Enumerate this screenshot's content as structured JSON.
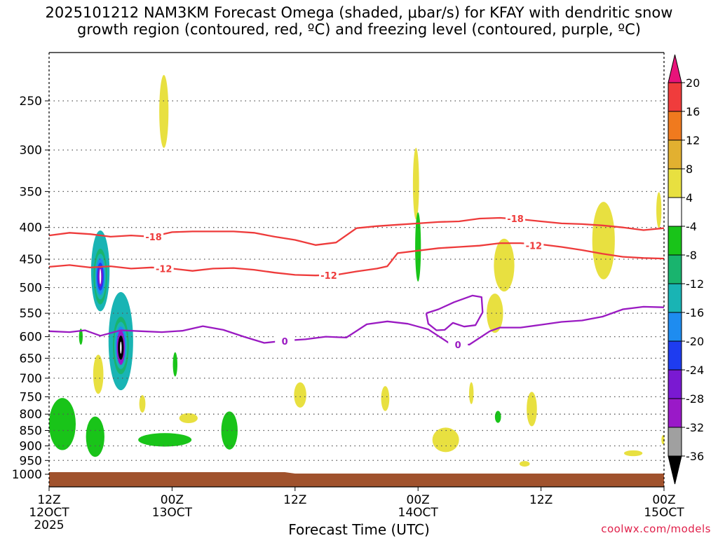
{
  "title": {
    "line1": "2025101212 NAM3KM Forecast Omega (shaded, μbar/s) for KFAY with dendritic snow",
    "line2": "growth region (contoured, red, ºC) and freezing level (contoured, purple, ºC)"
  },
  "xlabel": "Forecast Time (UTC)",
  "credit": "coolwx.com/models",
  "colors": {
    "red_contour": "#ee3b3b",
    "purple_contour": "#9a1ac2",
    "ground": "#a0522d",
    "grid": "#555555"
  },
  "chart_data": {
    "type": "heatmap",
    "title": "2025101212 NAM3KM Forecast Omega (shaded, μbar/s) for KFAY with dendritic snow growth region (contoured, red, ºC) and freezing level (contoured, purple, ºC)",
    "xlabel": "Forecast Time (UTC)",
    "ylabel": "",
    "x_range_hours": [
      0,
      60
    ],
    "y_log_pressure": true,
    "y_ticks": [
      250,
      300,
      350,
      400,
      450,
      500,
      550,
      600,
      650,
      700,
      750,
      800,
      850,
      900,
      950,
      1000
    ],
    "x_ticks": [
      {
        "hour": 0,
        "label1": "12Z",
        "label2": "12OCT",
        "label3": "2025"
      },
      {
        "hour": 12,
        "label1": "00Z",
        "label2": "13OCT",
        "label3": ""
      },
      {
        "hour": 24,
        "label1": "12Z",
        "label2": "",
        "label3": ""
      },
      {
        "hour": 36,
        "label1": "00Z",
        "label2": "14OCT",
        "label3": ""
      },
      {
        "hour": 48,
        "label1": "12Z",
        "label2": "",
        "label3": ""
      },
      {
        "hour": 60,
        "label1": "00Z",
        "label2": "15OCT",
        "label3": ""
      }
    ],
    "colorbar": {
      "labels": [
        "20",
        "16",
        "12",
        "8",
        "4",
        "-4",
        "-8",
        "-12",
        "-16",
        "-20",
        "-24",
        "-28",
        "-32",
        "-36"
      ],
      "colors": [
        "#e8137a",
        "#f03c3c",
        "#f07a1e",
        "#e2b030",
        "#e8e040",
        "#ffffff",
        "#19c419",
        "#19b46e",
        "#19b4b4",
        "#1e8cf0",
        "#1e3cf0",
        "#7a19d2",
        "#9a19c8",
        "#a0a0a0",
        "#000000"
      ]
    },
    "contours": [
      {
        "name": "-18",
        "color": "#ee3b3b",
        "points": [
          [
            0,
            412
          ],
          [
            2,
            408
          ],
          [
            4,
            410
          ],
          [
            6,
            414
          ],
          [
            8,
            412
          ],
          [
            10,
            414
          ],
          [
            12,
            407
          ],
          [
            14,
            406
          ],
          [
            16,
            406
          ],
          [
            18,
            406
          ],
          [
            20,
            408
          ],
          [
            22,
            414
          ],
          [
            24,
            419
          ],
          [
            26,
            427
          ],
          [
            28,
            423
          ],
          [
            30,
            401
          ],
          [
            32,
            398
          ],
          [
            34,
            396
          ],
          [
            36,
            394
          ],
          [
            38,
            392
          ],
          [
            40,
            391
          ],
          [
            42,
            387
          ],
          [
            44,
            386
          ],
          [
            46,
            388
          ],
          [
            48,
            391
          ],
          [
            50,
            394
          ],
          [
            52,
            395
          ],
          [
            54,
            397
          ],
          [
            56,
            400
          ],
          [
            58,
            404
          ],
          [
            60,
            401
          ]
        ],
        "labels": [
          {
            "x": 10.2,
            "p": 414,
            "text": "-18"
          },
          {
            "x": 45.5,
            "p": 387,
            "text": "-18"
          }
        ]
      },
      {
        "name": "-12",
        "color": "#ee3b3b",
        "points": [
          [
            0,
            463
          ],
          [
            2,
            460
          ],
          [
            4,
            464
          ],
          [
            6,
            462
          ],
          [
            8,
            466
          ],
          [
            10,
            464
          ],
          [
            12,
            466
          ],
          [
            14,
            470
          ],
          [
            16,
            466
          ],
          [
            18,
            465
          ],
          [
            20,
            468
          ],
          [
            22,
            473
          ],
          [
            24,
            477
          ],
          [
            26,
            478
          ],
          [
            28,
            477
          ],
          [
            30,
            471
          ],
          [
            32,
            466
          ],
          [
            33,
            462
          ],
          [
            34,
            440
          ],
          [
            36,
            436
          ],
          [
            38,
            432
          ],
          [
            40,
            430
          ],
          [
            42,
            428
          ],
          [
            44,
            424
          ],
          [
            46,
            424
          ],
          [
            48,
            426
          ],
          [
            50,
            430
          ],
          [
            52,
            435
          ],
          [
            54,
            441
          ],
          [
            56,
            446
          ],
          [
            58,
            448
          ],
          [
            60,
            449
          ]
        ],
        "labels": [
          {
            "x": 11.2,
            "p": 466,
            "text": "-12"
          },
          {
            "x": 27.3,
            "p": 478,
            "text": "-12"
          },
          {
            "x": 47.3,
            "p": 428,
            "text": "-12"
          }
        ]
      },
      {
        "name": "0",
        "color": "#9a1ac2",
        "points": [
          [
            0,
            588
          ],
          [
            2,
            590
          ],
          [
            3.5,
            586
          ],
          [
            5,
            598
          ],
          [
            7,
            586
          ],
          [
            9,
            588
          ],
          [
            11,
            590
          ],
          [
            13,
            587
          ],
          [
            15,
            577
          ],
          [
            17,
            585
          ],
          [
            19,
            600
          ],
          [
            21,
            614
          ],
          [
            23,
            609
          ],
          [
            25,
            606
          ],
          [
            27,
            600
          ],
          [
            29,
            602
          ],
          [
            31,
            573
          ],
          [
            33,
            567
          ],
          [
            35,
            572
          ],
          [
            37,
            584
          ],
          [
            39,
            614
          ],
          [
            41,
            618
          ],
          [
            43,
            588
          ],
          [
            44,
            580
          ],
          [
            46,
            580
          ],
          [
            48,
            574
          ],
          [
            50,
            568
          ],
          [
            52,
            565
          ],
          [
            54,
            557
          ],
          [
            56,
            542
          ],
          [
            58,
            537
          ],
          [
            60,
            538
          ]
        ],
        "labels": [
          {
            "x": 23.0,
            "p": 610,
            "text": "0"
          },
          {
            "x": 39.9,
            "p": 618,
            "text": "0"
          }
        ]
      },
      {
        "name": "0-closed",
        "color": "#9a1ac2",
        "points": [
          [
            36.8,
            550
          ],
          [
            38,
            542
          ],
          [
            39.5,
            528
          ],
          [
            41.3,
            515
          ],
          [
            42.2,
            518
          ],
          [
            42.3,
            548
          ],
          [
            41.6,
            575
          ],
          [
            40.5,
            578
          ],
          [
            39.4,
            570
          ],
          [
            38.6,
            585
          ],
          [
            37.8,
            586
          ],
          [
            37.0,
            572
          ],
          [
            36.8,
            550
          ]
        ],
        "labels": []
      }
    ],
    "shaded_regions": [
      {
        "value": 8,
        "x": 11.2,
        "p": 260,
        "rx": 0.45,
        "rp": 35
      },
      {
        "value": 8,
        "x": 35.8,
        "p": 340,
        "rx": 0.3,
        "rp": 45
      },
      {
        "value": -8,
        "x": 36.0,
        "p": 430,
        "rx": 0.28,
        "rp": 55
      },
      {
        "value": 8,
        "x": 54.1,
        "p": 420,
        "rx": 1.1,
        "rp": 60
      },
      {
        "value": 8,
        "x": 59.5,
        "p": 375,
        "rx": 0.25,
        "rp": 25
      },
      {
        "value": 8,
        "x": 44.4,
        "p": 460,
        "rx": 1.0,
        "rp": 45
      },
      {
        "value": 8,
        "x": 43.5,
        "p": 550,
        "rx": 0.8,
        "rp": 40
      },
      {
        "value": -16,
        "x": 5.0,
        "p": 470,
        "rx": 0.9,
        "rp": 70
      },
      {
        "value": -16,
        "x": 7.0,
        "p": 610,
        "rx": 1.2,
        "rp": 110
      },
      {
        "value": 8,
        "x": 4.8,
        "p": 690,
        "rx": 0.5,
        "rp": 50
      },
      {
        "value": 8,
        "x": 9.1,
        "p": 770,
        "rx": 0.3,
        "rp": 25
      },
      {
        "value": -8,
        "x": 3.1,
        "p": 600,
        "rx": 0.18,
        "rp": 18
      },
      {
        "value": -8,
        "x": 12.3,
        "p": 665,
        "rx": 0.22,
        "rp": 30
      },
      {
        "value": -8,
        "x": 1.3,
        "p": 830,
        "rx": 1.3,
        "rp": 80
      },
      {
        "value": -8,
        "x": 4.5,
        "p": 870,
        "rx": 0.9,
        "rp": 65
      },
      {
        "value": -8,
        "x": 11.3,
        "p": 880,
        "rx": 2.6,
        "rp": 22
      },
      {
        "value": -8,
        "x": 17.6,
        "p": 850,
        "rx": 0.8,
        "rp": 60
      },
      {
        "value": 8,
        "x": 13.6,
        "p": 812,
        "rx": 0.9,
        "rp": 15
      },
      {
        "value": 8,
        "x": 24.5,
        "p": 745,
        "rx": 0.6,
        "rp": 35
      },
      {
        "value": 8,
        "x": 32.8,
        "p": 755,
        "rx": 0.4,
        "rp": 35
      },
      {
        "value": 8,
        "x": 41.2,
        "p": 740,
        "rx": 0.22,
        "rp": 30
      },
      {
        "value": -8,
        "x": 43.8,
        "p": 808,
        "rx": 0.3,
        "rp": 18
      },
      {
        "value": 8,
        "x": 47.1,
        "p": 785,
        "rx": 0.5,
        "rp": 50
      },
      {
        "value": 8,
        "x": 38.7,
        "p": 880,
        "rx": 1.3,
        "rp": 40
      },
      {
        "value": 8,
        "x": 46.4,
        "p": 962,
        "rx": 0.5,
        "rp": 10
      },
      {
        "value": 8,
        "x": 57.0,
        "p": 925,
        "rx": 0.9,
        "rp": 10
      },
      {
        "value": 8,
        "x": 59.9,
        "p": 880,
        "rx": 0.15,
        "rp": 15
      }
    ],
    "intense_cores": [
      {
        "x": 5.0,
        "p": 480,
        "rx": 0.55,
        "rp": 45,
        "value": -28
      },
      {
        "x": 7.0,
        "p": 620,
        "rx": 0.65,
        "rp": 60,
        "value": -28
      },
      {
        "x": 7.0,
        "p": 625,
        "rx": 0.4,
        "rp": 40,
        "value": -36
      }
    ]
  }
}
